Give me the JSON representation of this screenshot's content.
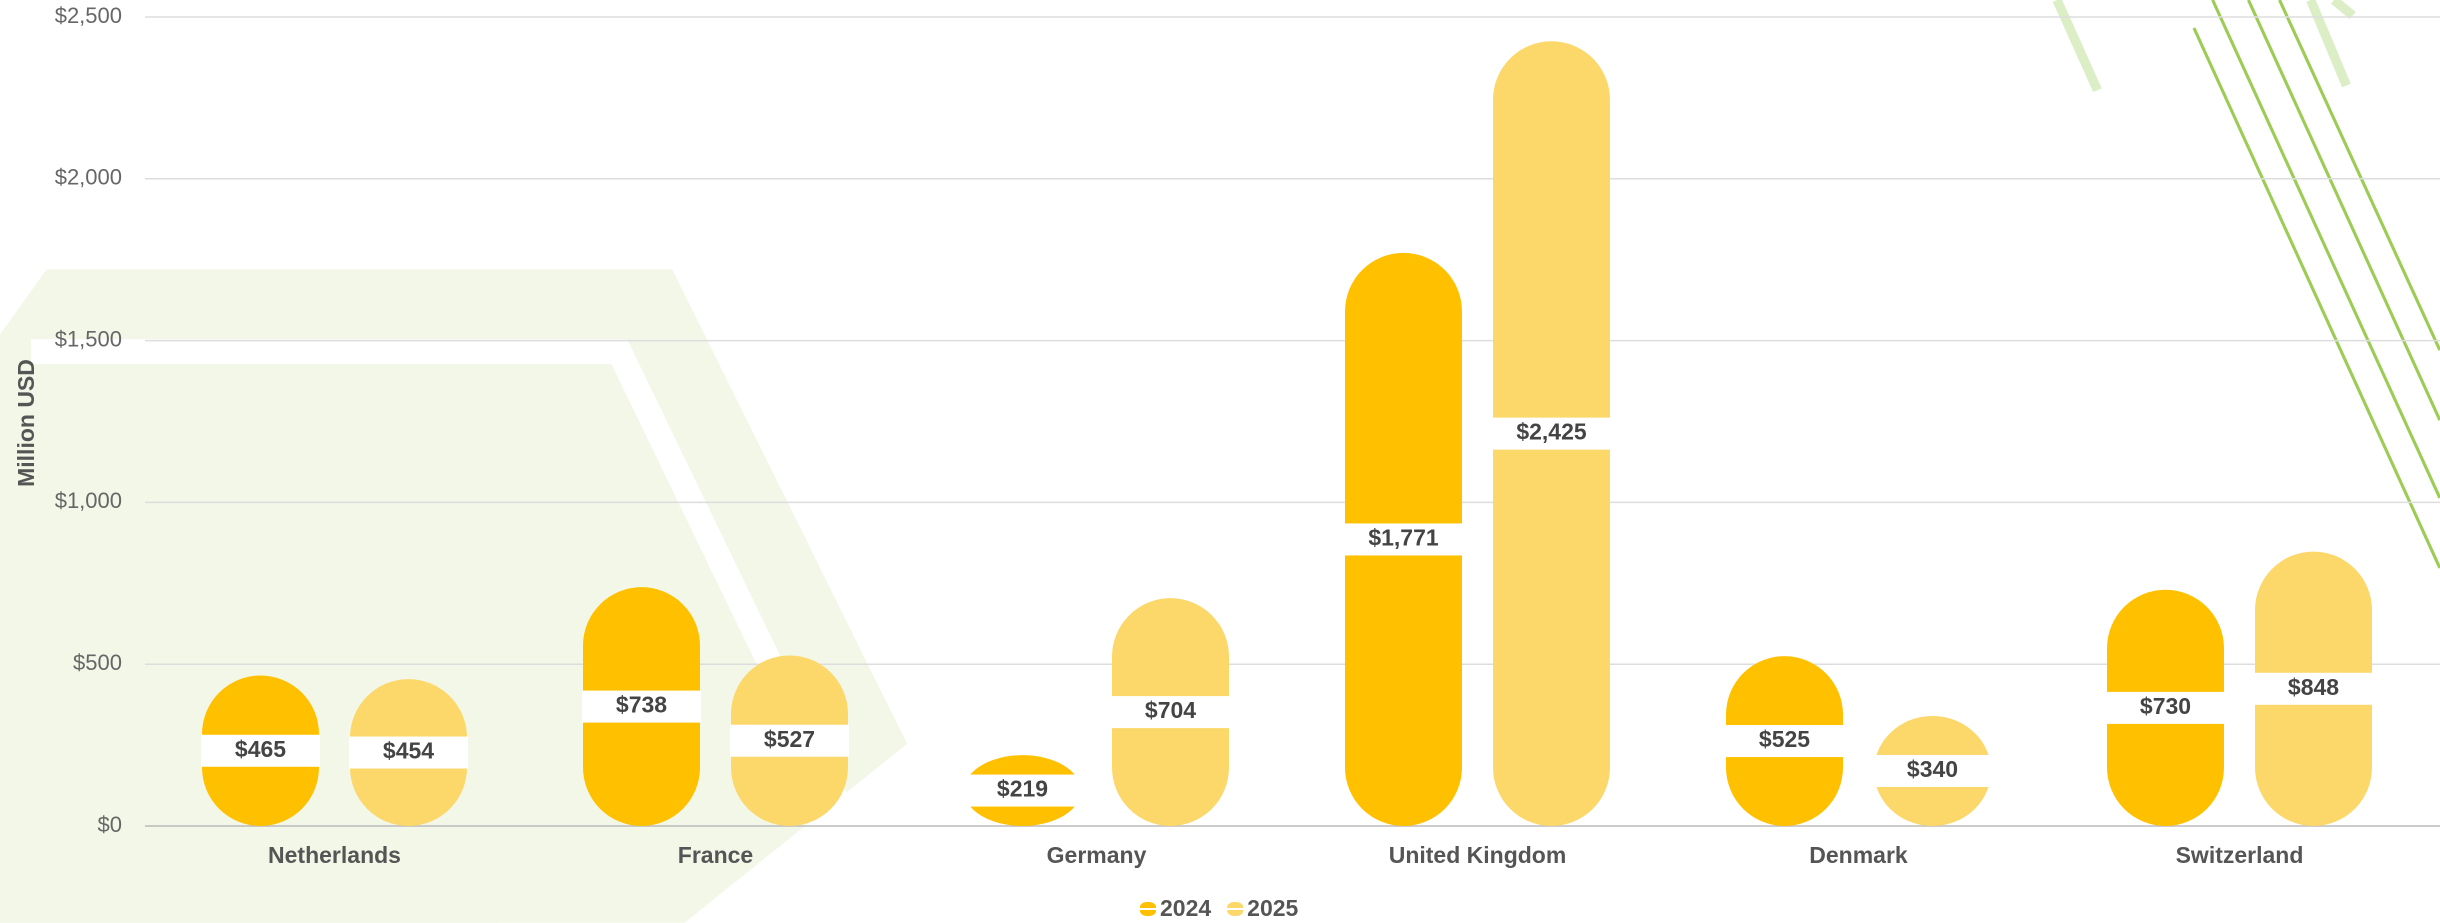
{
  "chart_data": {
    "type": "bar",
    "y_label": "Million USD",
    "categories": [
      "Netherlands",
      "France",
      "Germany",
      "United Kingdom",
      "Denmark",
      "Switzerland"
    ],
    "series": [
      {
        "name": "2024",
        "color": "#FFC000",
        "values": [
          465,
          738,
          219,
          1771,
          525,
          730
        ],
        "value_labels": [
          "$465",
          "$738",
          "$219",
          "$1,771",
          "$525",
          "$730"
        ]
      },
      {
        "name": "2025",
        "color": "#FCD86A",
        "values": [
          454,
          527,
          704,
          2425,
          340,
          848
        ],
        "value_labels": [
          "$454",
          "$527",
          "$704",
          "$2,425",
          "$340",
          "$848"
        ]
      }
    ],
    "ylim": [
      0,
      2500
    ],
    "yticks": [
      {
        "value": 0,
        "label": "$0"
      },
      {
        "value": 500,
        "label": "$500"
      },
      {
        "value": 1000,
        "label": "$1,000"
      },
      {
        "value": 1500,
        "label": "$1,500"
      },
      {
        "value": 2000,
        "label": "$2,000"
      },
      {
        "value": 2500,
        "label": "$2,500"
      }
    ],
    "grid": true,
    "legend": "bottom"
  }
}
